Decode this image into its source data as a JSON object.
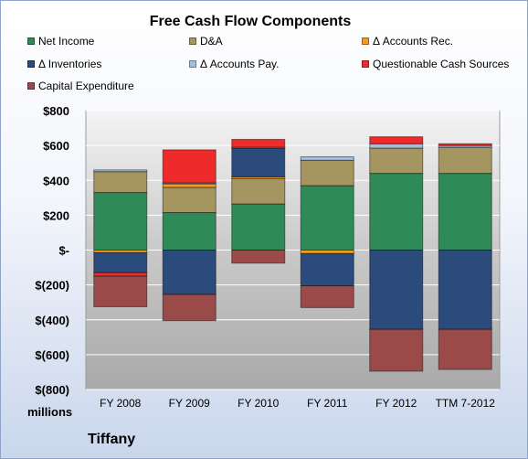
{
  "chart_data": {
    "type": "bar",
    "stacked": true,
    "title": "Free Cash Flow Components",
    "categories": [
      "FY 2008",
      "FY 2009",
      "FY 2010",
      "FY 2011",
      "FY 2012",
      "TTM 7-2012"
    ],
    "series": [
      {
        "name": "Net Income",
        "color": "#2e8b57",
        "values": [
          330,
          215,
          265,
          370,
          440,
          440
        ]
      },
      {
        "name": "D&A",
        "color": "#a59560",
        "values": [
          120,
          145,
          145,
          145,
          145,
          150
        ]
      },
      {
        "name": "Δ Accounts Rec.",
        "color": "#f39c24",
        "values": [
          -15,
          20,
          10,
          -20,
          0,
          0
        ]
      },
      {
        "name": "Δ Inventories",
        "color": "#2a4b7c",
        "values": [
          -115,
          -255,
          165,
          -185,
          -455,
          -455
        ]
      },
      {
        "name": "Δ Accounts Pay.",
        "color": "#a4bedc",
        "values": [
          10,
          5,
          5,
          20,
          25,
          10
        ]
      },
      {
        "name": "Questionable Cash Sources",
        "color": "#ee2a2a",
        "values": [
          -20,
          190,
          45,
          0,
          40,
          10
        ]
      },
      {
        "name": "Capital Expenditure",
        "color": "#9b4a4a",
        "values": [
          -175,
          -150,
          -75,
          -125,
          -240,
          -230
        ]
      }
    ],
    "y_ticks": [
      "$800",
      "$600",
      "$400",
      "$200",
      "$-",
      "$(200)",
      "$(400)",
      "$(600)",
      "$(800)"
    ],
    "ylim": [
      -800,
      800
    ],
    "y_tick_step": 200,
    "grid": true,
    "legend_position": "top",
    "unit_label": "millions",
    "footer_label": "Tiffany"
  }
}
